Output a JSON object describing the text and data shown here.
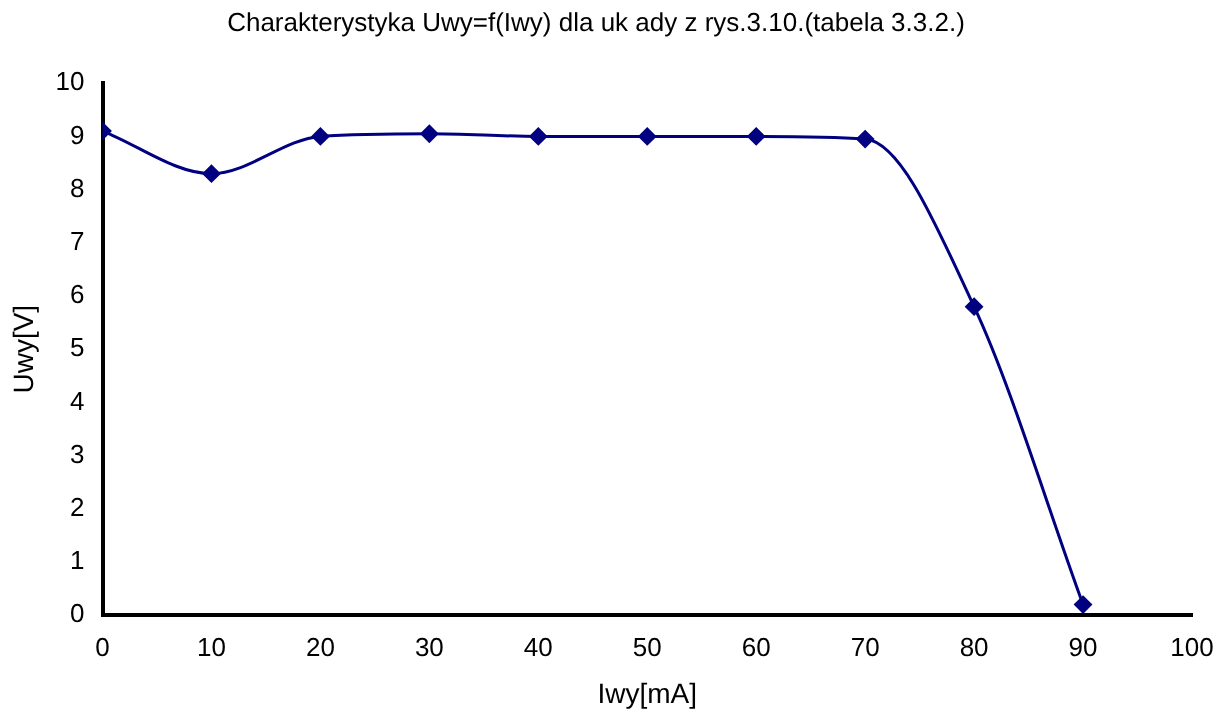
{
  "chart_data": {
    "type": "line",
    "title": "Charakterystyka Uwy=f(Iwy) dla uk ady z rys.3.10.(tabela 3.3.2.)",
    "xlabel": "Iwy[mA]",
    "ylabel": "Uwy[V]",
    "x": [
      0,
      10,
      20,
      30,
      40,
      50,
      60,
      70,
      80,
      90
    ],
    "series": [
      {
        "color": "#000080",
        "values": [
          9.1,
          8.3,
          9.0,
          9.05,
          9.0,
          9.0,
          9.0,
          8.95,
          5.8,
          0.2
        ]
      }
    ],
    "xlim": [
      0,
      100
    ],
    "xticks": [
      0,
      10,
      20,
      30,
      40,
      50,
      60,
      70,
      80,
      90,
      100
    ],
    "ylim": [
      0,
      10
    ],
    "yticks": [
      0,
      1,
      2,
      3,
      4,
      5,
      6,
      7,
      8,
      9,
      10
    ],
    "grid": false,
    "legend": false,
    "marker": "diamond",
    "line_style": "solid"
  }
}
